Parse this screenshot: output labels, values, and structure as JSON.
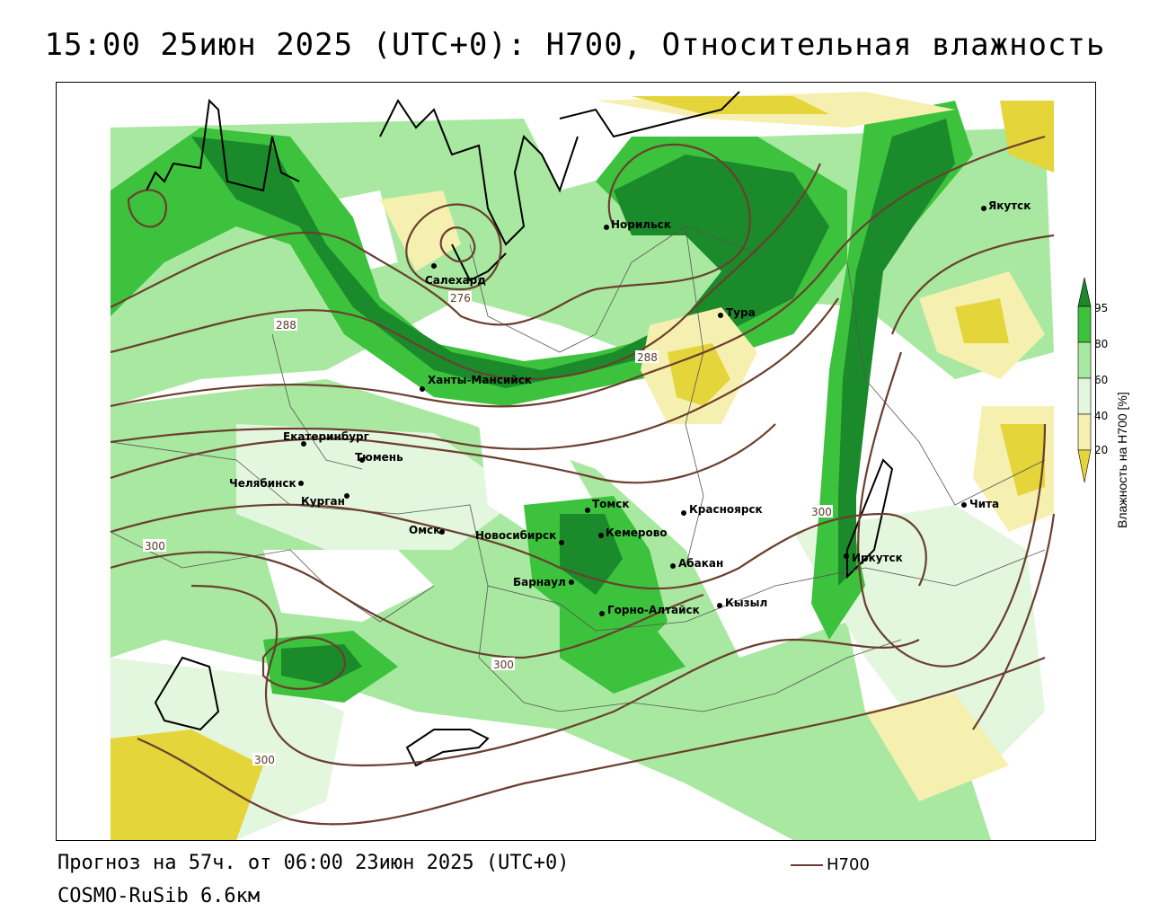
{
  "title": "15:00 25июн 2025 (UTC+0): H700, Относительная влажность",
  "forecast_text": "Прогноз на 57ч. от 06:00 23июн 2025 (UTC+0)",
  "model_text": "COSMO-RuSib 6.6км",
  "legend_label": "H700",
  "scale": {
    "title": "Влажность на H700 [%]",
    "ticks": [
      "95",
      "80",
      "60",
      "40",
      "20"
    ],
    "colors": {
      "c95": "#1a8a2a",
      "c80": "#3cc23c",
      "c60": "#a8e8a0",
      "c50": "#e3f7de",
      "c40": "#ffffff",
      "c30": "#f6f0b0",
      "c20": "#e3d53a"
    }
  },
  "cities": [
    {
      "name": "Норильск"
    },
    {
      "name": "Якутск"
    },
    {
      "name": "Салехард"
    },
    {
      "name": "Тура"
    },
    {
      "name": "Ханты-Мансийск"
    },
    {
      "name": "Екатеринбург"
    },
    {
      "name": "Тюмень"
    },
    {
      "name": "Челябинск"
    },
    {
      "name": "Курган"
    },
    {
      "name": "Омск"
    },
    {
      "name": "Новосибирск"
    },
    {
      "name": "Томск"
    },
    {
      "name": "Кемерово"
    },
    {
      "name": "Красноярск"
    },
    {
      "name": "Барнаул"
    },
    {
      "name": "Абакан"
    },
    {
      "name": "Горно-Алтайск"
    },
    {
      "name": "Кызыл"
    },
    {
      "name": "Иркутск"
    },
    {
      "name": "Чита"
    }
  ],
  "isolines": [
    "276",
    "288",
    "288",
    "300",
    "300",
    "300",
    "300"
  ],
  "contour_color": "#6b3f2f"
}
